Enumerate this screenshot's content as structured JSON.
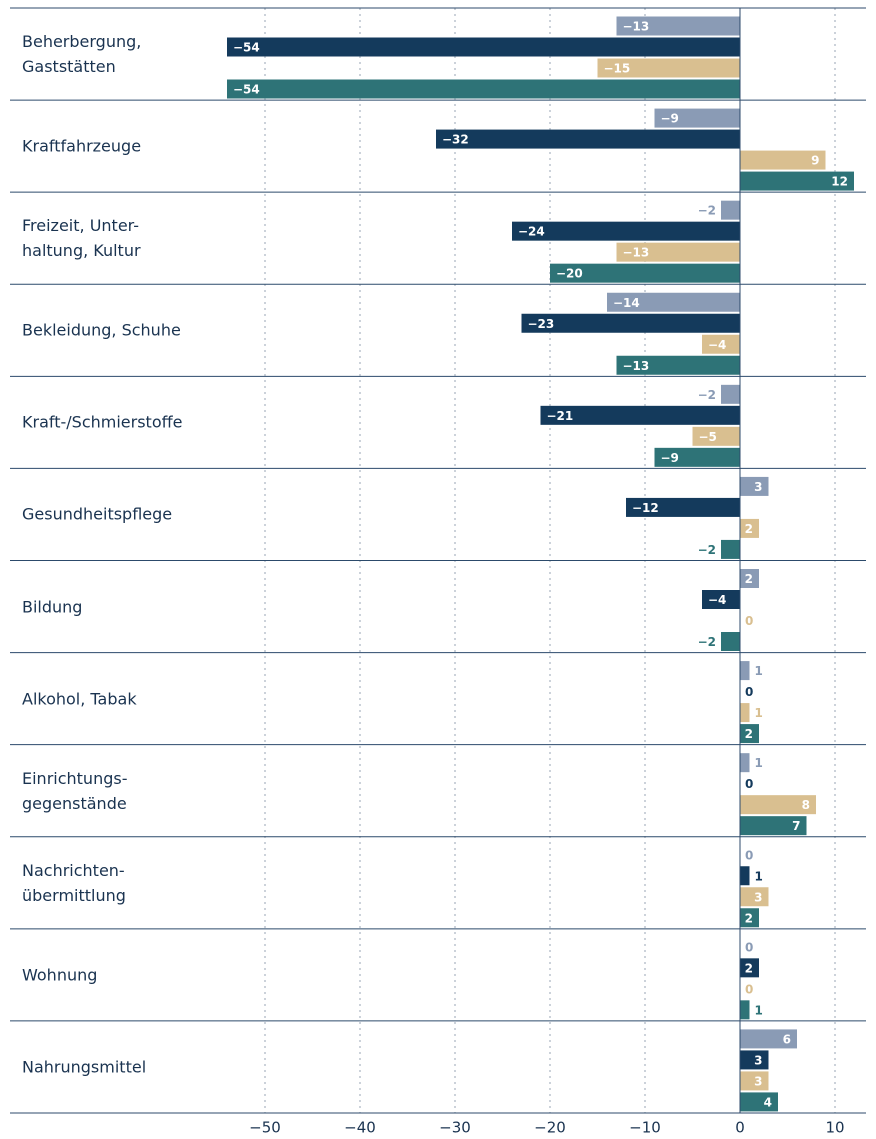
{
  "chart_data": {
    "type": "bar",
    "orientation": "horizontal",
    "categories": [
      "Beherbergung,\nGaststätten",
      "Kraftfahrzeuge",
      "Freizeit, Unter-\nhaltung, Kultur",
      "Bekleidung, Schuhe",
      "Kraft-/Schmierstoffe",
      "Gesundheitspflege",
      "Bildung",
      "Alkohol, Tabak",
      "Einrichtungs-\ngegenstände",
      "Nachrichten-\nübermittlung",
      "Wohnung",
      "Nahrungsmittel"
    ],
    "series": [
      {
        "color": "#8a9bb5",
        "values": [
          -13,
          -9,
          -2,
          -14,
          -2,
          3,
          2,
          1,
          1,
          0,
          0,
          6
        ],
        "value_labels": [
          "−13",
          "−9",
          "−2",
          "−14",
          "−2",
          "3",
          "2",
          "1",
          "1",
          "0",
          "0",
          "6"
        ]
      },
      {
        "color": "#143a5c",
        "values": [
          -54,
          -32,
          -24,
          -23,
          -21,
          -12,
          -4,
          0,
          0,
          1,
          2,
          3
        ],
        "value_labels": [
          "−54",
          "−32",
          "−24",
          "−23",
          "−21",
          "−12",
          "−4",
          "0",
          "0",
          "1",
          "2",
          "3"
        ]
      },
      {
        "color": "#d9bf90",
        "values": [
          -15,
          9,
          -13,
          -4,
          -5,
          2,
          0,
          1,
          8,
          3,
          0,
          3
        ],
        "value_labels": [
          "−15",
          "9",
          "−13",
          "−4",
          "−5",
          "2",
          "0",
          "1",
          "8",
          "3",
          "0",
          "3"
        ]
      },
      {
        "color": "#2e7377",
        "values": [
          -54,
          12,
          -20,
          -13,
          -9,
          -2,
          -2,
          2,
          7,
          2,
          1,
          4
        ],
        "value_labels": [
          "−54",
          "12",
          "−20",
          "−13",
          "−9",
          "−2",
          "−2",
          "2",
          "7",
          "2",
          "1",
          "4"
        ]
      }
    ],
    "xlim": [
      -54,
      13
    ],
    "xticks": [
      {
        "value": -50,
        "label": "−50"
      },
      {
        "value": -40,
        "label": "−40"
      },
      {
        "value": -30,
        "label": "−30"
      },
      {
        "value": -20,
        "label": "−20"
      },
      {
        "value": -10,
        "label": "−10"
      },
      0,
      10
    ],
    "grid": true
  }
}
